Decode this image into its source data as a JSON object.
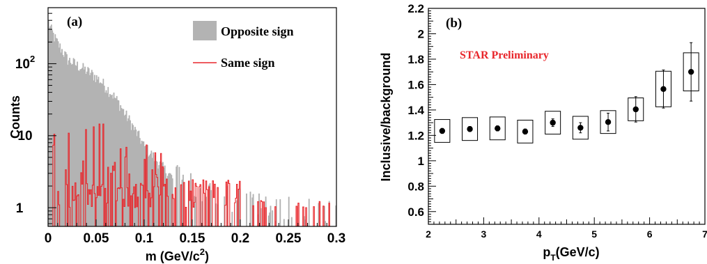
{
  "chart_data": [
    {
      "type": "histogram",
      "panel_label": "(a)",
      "xlabel": "m (GeV/c",
      "xlabel_sup": "2",
      "xlabel_end": ")",
      "ylabel": "Counts",
      "xlim": [
        0,
        0.3
      ],
      "ylim": [
        0.55,
        600
      ],
      "yscale": "log",
      "xticks": [
        0,
        0.05,
        0.1,
        0.15,
        0.2,
        0.25,
        0.3
      ],
      "xtick_labels": [
        "0",
        "0.05",
        "0.1",
        "0.15",
        "0.2",
        "0.25",
        "0.3"
      ],
      "ytick_labels": {
        "one": "1",
        "ten": "10",
        "hundred_base": "10",
        "hundred_exp": "2"
      },
      "legend": [
        {
          "label": "Opposite sign",
          "color": "#b3b3b3",
          "style": "filled"
        },
        {
          "label": "Same sign",
          "color": "#e8262b",
          "style": "line"
        }
      ],
      "series": [
        {
          "name": "Opposite sign",
          "envelope": {
            "x": [
              0.0,
              0.003,
              0.006,
              0.01,
              0.015,
              0.02,
              0.03,
              0.04,
              0.05,
              0.06,
              0.07,
              0.08,
              0.09,
              0.1,
              0.11,
              0.12,
              0.13,
              0.14,
              0.15,
              0.16,
              0.18,
              0.2,
              0.23,
              0.26,
              0.3
            ],
            "y": [
              380,
              300,
              240,
              190,
              150,
              115,
              95,
              80,
              65,
              48,
              33,
              20,
              12,
              7,
              5,
              3.5,
              2.5,
              1.8,
              1.4,
              1.2,
              1.0,
              0.85,
              0.7,
              0.62,
              0.58
            ]
          }
        },
        {
          "name": "Same sign",
          "range": [
            0.003,
            0.298
          ],
          "y_min": 0.55,
          "y_max": 15
        }
      ]
    },
    {
      "type": "scatter",
      "panel_label": "(b)",
      "annotation": "STAR Preliminary",
      "xlabel": "p",
      "xlabel_sub": "T",
      "xlabel_end": "(GeV/c)",
      "ylabel": "Inclusive/background",
      "xlim": [
        2,
        7
      ],
      "ylim": [
        0.5,
        2.2
      ],
      "xticks": [
        2,
        3,
        4,
        5,
        6,
        7
      ],
      "xtick_labels": [
        "2",
        "3",
        "4",
        "5",
        "6",
        "7"
      ],
      "yticks": [
        0.6,
        0.8,
        1.0,
        1.2,
        1.4,
        1.6,
        1.8,
        2.0,
        2.2
      ],
      "ytick_labels": [
        "0.6",
        "0.8",
        "1",
        "1.2",
        "1.4",
        "1.6",
        "1.8",
        "2",
        "2.2"
      ],
      "points": [
        {
          "x": 2.25,
          "y": 1.235,
          "stat": 0.02,
          "sys": 0.09
        },
        {
          "x": 2.75,
          "y": 1.25,
          "stat": 0.02,
          "sys": 0.09
        },
        {
          "x": 3.25,
          "y": 1.255,
          "stat": 0.02,
          "sys": 0.09
        },
        {
          "x": 3.75,
          "y": 1.23,
          "stat": 0.02,
          "sys": 0.09
        },
        {
          "x": 4.25,
          "y": 1.3,
          "stat": 0.03,
          "sys": 0.09
        },
        {
          "x": 4.75,
          "y": 1.26,
          "stat": 0.04,
          "sys": 0.09
        },
        {
          "x": 5.25,
          "y": 1.305,
          "stat": 0.07,
          "sys": 0.09
        },
        {
          "x": 5.75,
          "y": 1.405,
          "stat": 0.1,
          "sys": 0.09
        },
        {
          "x": 6.25,
          "y": 1.565,
          "stat": 0.15,
          "sys": 0.14
        },
        {
          "x": 6.75,
          "y": 1.7,
          "stat": 0.23,
          "sys": 0.15
        }
      ]
    }
  ]
}
